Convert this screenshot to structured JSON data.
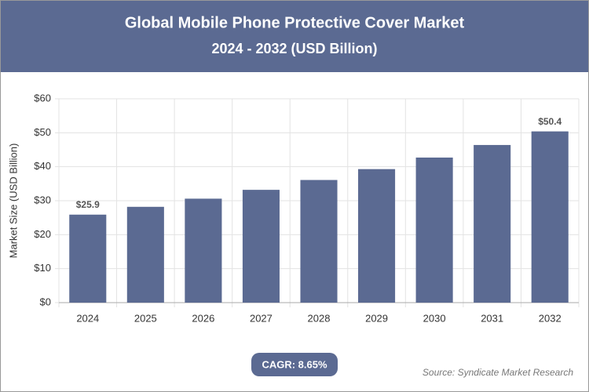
{
  "chart_data": {
    "type": "bar",
    "title": "Global Mobile Phone Protective Cover Market",
    "subtitle": "2024 - 2032 (USD Billion)",
    "y_label": "Market Size (USD Billion)",
    "categories": [
      "2024",
      "2025",
      "2026",
      "2027",
      "2028",
      "2029",
      "2030",
      "2031",
      "2032"
    ],
    "values": [
      25.9,
      28.2,
      30.6,
      33.2,
      36.1,
      39.3,
      42.7,
      46.4,
      50.4
    ],
    "value_labels": [
      "$25.9",
      null,
      null,
      null,
      null,
      null,
      null,
      null,
      "$50.4"
    ],
    "color": "#5b6a92",
    "ylim": [
      0,
      60
    ],
    "yticks": [
      {
        "value": 0,
        "label": "$0"
      },
      {
        "value": 10,
        "label": "$10"
      },
      {
        "value": 20,
        "label": "$20"
      },
      {
        "value": 30,
        "label": "$30"
      },
      {
        "value": 40,
        "label": "$40"
      },
      {
        "value": 50,
        "label": "$50"
      },
      {
        "value": 60,
        "label": "$60"
      }
    ],
    "grid": true,
    "annotation": "CAGR: 8.65%",
    "source": "Source: Syndicate Market Research"
  }
}
